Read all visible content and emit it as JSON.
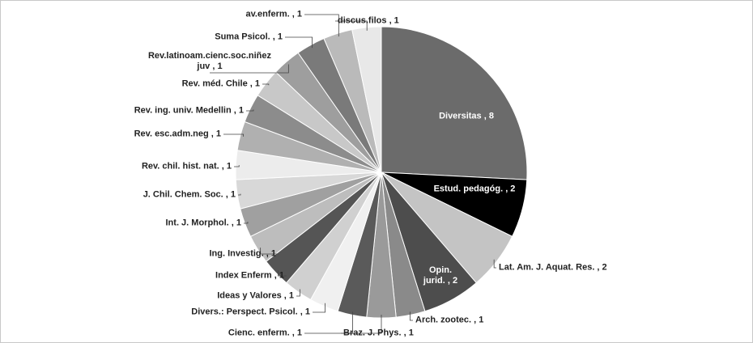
{
  "chart_data": {
    "type": "pie",
    "value_labels": [
      "Diversitas , 8",
      "Estud. pedagóg. , 2",
      "Lat. Am. J. Aquat. Res. , 2",
      "Opin.\njurid. , 2",
      "Arch. zootec. , 1",
      "Braz. J. Phys. , 1",
      "Cienc. enferm. , 1",
      "Divers.: Perspect. Psicol. , 1",
      "Ideas y Valores , 1",
      "Index Enferm , 1",
      "Ing. Investig. , 1",
      "Int. J. Morphol. , 1",
      "J. Chil. Chem. Soc. , 1",
      "Rev. chil. hist. nat. , 1",
      "Rev. esc.adm.neg , 1",
      "Rev. ing. univ. Medellin , 1",
      "Rev. méd. Chile , 1",
      "Rev.latinoam.cienc.soc.niñez\njuv , 1",
      "Suma Psicol. , 1",
      "av.enferm. , 1",
      "discus.filos , 1"
    ],
    "values": [
      8,
      2,
      2,
      2,
      1,
      1,
      1,
      1,
      1,
      1,
      1,
      1,
      1,
      1,
      1,
      1,
      1,
      1,
      1,
      1,
      1
    ],
    "colors": [
      "#6b6b6b",
      "#000000",
      "#c4c4c4",
      "#4d4d4d",
      "#8a8a8a",
      "#9a9a9a",
      "#5a5a5a",
      "#f0f0f0",
      "#d0d0d0",
      "#555555",
      "#bdbdbd",
      "#a0a0a0",
      "#d8d8d8",
      "#ececec",
      "#b0b0b0",
      "#8c8c8c",
      "#c8c8c8",
      "#9e9e9e",
      "#7a7a7a",
      "#bababa",
      "#e8e8e8"
    ]
  }
}
